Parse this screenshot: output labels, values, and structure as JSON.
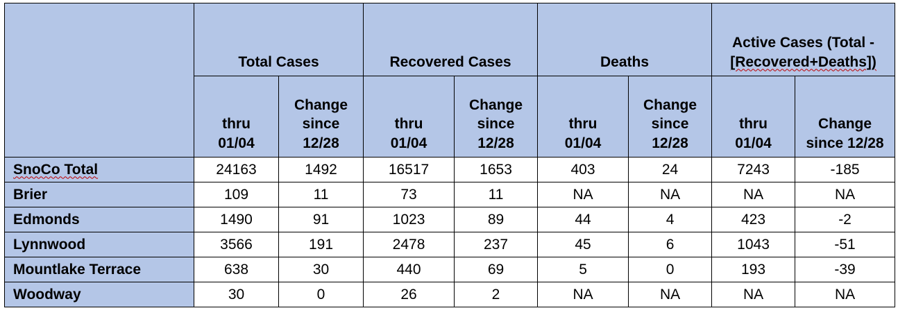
{
  "table": {
    "groups": [
      {
        "label": "Total Cases"
      },
      {
        "label": "Recovered Cases"
      },
      {
        "label": "Deaths"
      },
      {
        "label_line1": "Active Cases (Total -",
        "label_line2": "[Recovered+Deaths])"
      }
    ],
    "subheaders": [
      {
        "line1": "thru",
        "line2": "01/04"
      },
      {
        "line1": "Change",
        "line2": "since",
        "line3": "12/28"
      },
      {
        "line1": "thru",
        "line2": "01/04"
      },
      {
        "line1": "Change",
        "line2": "since",
        "line3": "12/28"
      },
      {
        "line1": "thru",
        "line2": "01/04"
      },
      {
        "line1": "Change",
        "line2": "since",
        "line3": "12/28"
      },
      {
        "line1": "thru",
        "line2": "01/04"
      },
      {
        "line1": "Change",
        "line2": "since 12/28"
      }
    ],
    "rows": [
      {
        "name": "SnoCo Total",
        "values": [
          "24163",
          "1492",
          "16517",
          "1653",
          "403",
          "24",
          "7243",
          "-185"
        ]
      },
      {
        "name": "Brier",
        "values": [
          "109",
          "11",
          "73",
          "11",
          "NA",
          "NA",
          "NA",
          "NA"
        ]
      },
      {
        "name": "Edmonds",
        "values": [
          "1490",
          "91",
          "1023",
          "89",
          "44",
          "4",
          "423",
          "-2"
        ]
      },
      {
        "name": "Lynnwood",
        "values": [
          "3566",
          "191",
          "2478",
          "237",
          "45",
          "6",
          "1043",
          "-51"
        ]
      },
      {
        "name": "Mountlake Terrace",
        "values": [
          "638",
          "30",
          "440",
          "69",
          "5",
          "0",
          "193",
          "-39"
        ]
      },
      {
        "name": "Woodway",
        "values": [
          "30",
          "0",
          "26",
          "2",
          "NA",
          "NA",
          "NA",
          "NA"
        ]
      }
    ]
  },
  "colors": {
    "header_fill": "#b4c6e7",
    "border": "#000000",
    "spellcheck": "#c00000"
  }
}
